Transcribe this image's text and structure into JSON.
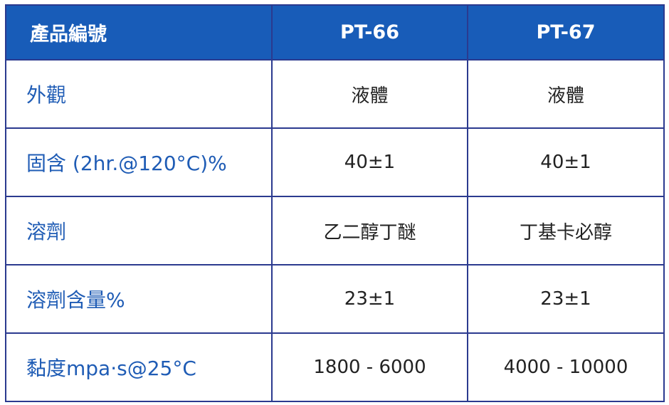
{
  "header": {
    "label": "產品編號",
    "products": [
      "PT-66",
      "PT-67"
    ]
  },
  "rows": [
    {
      "label": "外觀",
      "values": [
        "液體",
        "液體"
      ]
    },
    {
      "label": "固含 (2hr.@120°C)%",
      "values": [
        "40±1",
        "40±1"
      ]
    },
    {
      "label": "溶劑",
      "values": [
        "乙二醇丁醚",
        "丁基卡必醇"
      ]
    },
    {
      "label": "溶劑含量%",
      "values": [
        "23±1",
        "23±1"
      ]
    },
    {
      "label": "黏度mpa·s@25°C",
      "values": [
        "1800 - 6000",
        "4000 - 10000"
      ]
    }
  ],
  "colors": {
    "header_bg": "#185cb8",
    "border": "#2b3a8f",
    "label_text": "#1f5cb5"
  }
}
